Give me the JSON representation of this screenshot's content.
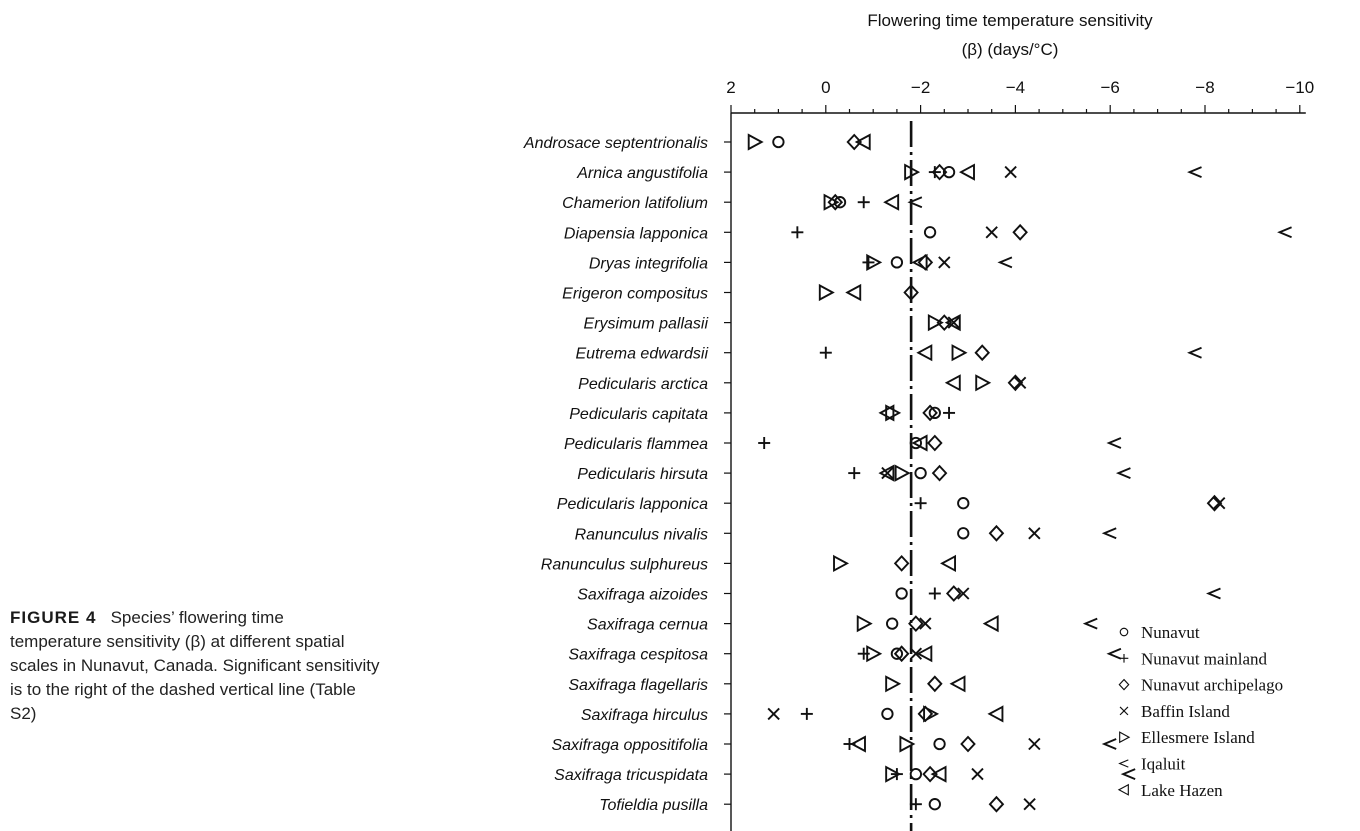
{
  "caption": {
    "label": "FIGURE 4",
    "text": "Species’ flowering time temperature sensitivity (β) at different spatial scales in Nunavut, Canada. Significant sensitivity is to the right of the dashed vertical line (Table S2)"
  },
  "chart_data": {
    "type": "scatter",
    "title": "Flowering time temperature sensitivity",
    "subtitle": "(β) (days/°C)",
    "xlim": [
      2,
      -10
    ],
    "x_ticks": [
      2,
      0,
      -2,
      -4,
      -6,
      -8,
      -10
    ],
    "x_tick_labels": [
      "2",
      "0",
      "−2",
      "−4",
      "−6",
      "−8",
      "−10"
    ],
    "reference_line": -1.8,
    "legend_position": "bottom-right",
    "species": [
      "Androsace septentrionalis",
      "Arnica angustifolia",
      "Chamerion latifolium",
      "Diapensia lapponica",
      "Dryas integrifolia",
      "Erigeron compositus",
      "Erysimum pallasii",
      "Eutrema edwardsii",
      "Pedicularis arctica",
      "Pedicularis capitata",
      "Pedicularis flammea",
      "Pedicularis hirsuta",
      "Pedicularis lapponica",
      "Ranunculus nivalis",
      "Ranunculus sulphureus",
      "Saxifraga aizoides",
      "Saxifraga cernua",
      "Saxifraga cespitosa",
      "Saxifraga flagellaris",
      "Saxifraga hirculus",
      "Saxifraga oppositifolia",
      "Saxifraga tricuspidata",
      "Tofieldia pusilla"
    ],
    "series": [
      {
        "name": "Nunavut",
        "marker": "circle",
        "values": [
          1.0,
          -2.6,
          -0.3,
          -2.2,
          -1.5,
          null,
          null,
          null,
          null,
          -2.3,
          -1.9,
          -2.0,
          -2.9,
          -2.9,
          null,
          -1.6,
          -1.4,
          -1.5,
          null,
          -1.3,
          -2.4,
          -1.9,
          -2.3
        ]
      },
      {
        "name": "Nunavut mainland",
        "marker": "plus",
        "values": [
          null,
          -2.3,
          -0.8,
          0.6,
          -0.9,
          null,
          null,
          0.0,
          null,
          -2.6,
          1.3,
          -0.6,
          -2.0,
          null,
          null,
          -2.3,
          null,
          -0.8,
          null,
          0.4,
          -0.5,
          -1.5,
          -1.9
        ]
      },
      {
        "name": "Nunavut archipelago",
        "marker": "diamond",
        "values": [
          -0.6,
          -2.4,
          -0.2,
          -4.1,
          -2.1,
          -1.8,
          -2.5,
          -3.3,
          -4.0,
          -2.2,
          -2.3,
          -2.4,
          -8.2,
          -3.6,
          -1.6,
          -2.7,
          -1.9,
          -1.6,
          -2.3,
          -2.1,
          -3.0,
          -2.2,
          -3.6
        ]
      },
      {
        "name": "Baffin Island",
        "marker": "x",
        "values": [
          null,
          -3.9,
          null,
          -3.5,
          -2.5,
          null,
          -2.7,
          null,
          -4.1,
          null,
          null,
          -1.3,
          -8.3,
          -4.4,
          null,
          -2.9,
          -2.1,
          -1.9,
          null,
          1.1,
          -4.4,
          -3.2,
          -4.3
        ]
      },
      {
        "name": "Ellesmere Island",
        "marker": "tri-right",
        "values": [
          1.5,
          -1.8,
          -0.1,
          null,
          -1.0,
          0.0,
          -2.3,
          -2.8,
          -3.3,
          -1.4,
          null,
          -1.6,
          null,
          null,
          -0.3,
          null,
          -0.8,
          -1.0,
          -1.4,
          -2.2,
          -1.7,
          -1.4,
          null
        ]
      },
      {
        "name": "Iqaluit",
        "marker": "tri-left-open",
        "values": [
          null,
          -7.8,
          -1.9,
          -9.7,
          -3.8,
          null,
          null,
          -7.8,
          null,
          null,
          -6.1,
          -6.3,
          null,
          -6.0,
          null,
          -8.2,
          -5.6,
          -6.1,
          null,
          null,
          -6.0,
          -6.4,
          null
        ]
      },
      {
        "name": "Lake Hazen",
        "marker": "tri-left",
        "values": [
          -0.8,
          -3.0,
          -1.4,
          null,
          -2.0,
          -0.6,
          -2.7,
          -2.1,
          -2.7,
          -1.3,
          -2.0,
          -1.3,
          null,
          null,
          -2.6,
          null,
          -3.5,
          -2.1,
          -2.8,
          -3.6,
          -0.7,
          -2.4,
          null
        ]
      }
    ]
  }
}
